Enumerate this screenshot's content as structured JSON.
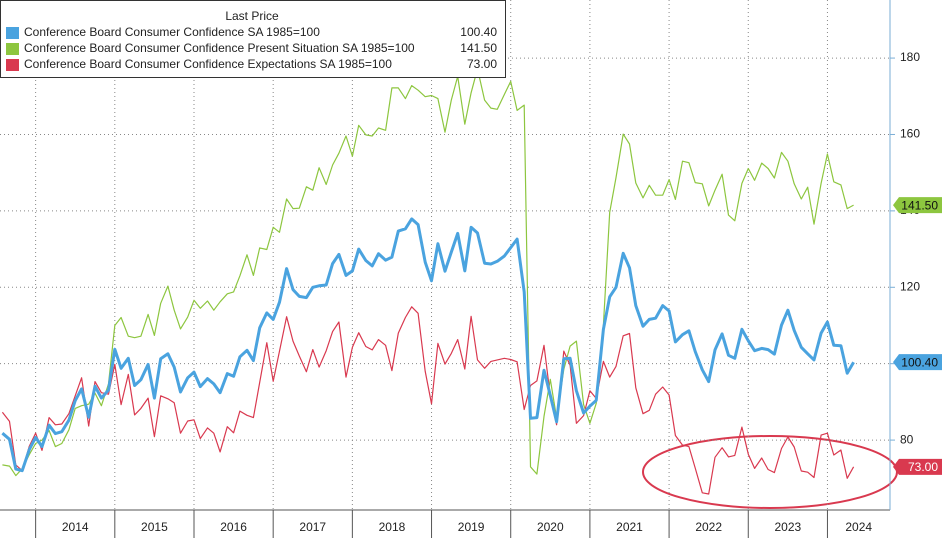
{
  "chart_data": {
    "type": "line",
    "legend_title": "Last Price",
    "x": [
      2013.58,
      2013.67,
      2013.75,
      2013.83,
      2013.92,
      2014.0,
      2014.08,
      2014.17,
      2014.25,
      2014.33,
      2014.42,
      2014.5,
      2014.58,
      2014.67,
      2014.75,
      2014.83,
      2014.92,
      2015.0,
      2015.08,
      2015.17,
      2015.25,
      2015.33,
      2015.42,
      2015.5,
      2015.58,
      2015.67,
      2015.75,
      2015.83,
      2015.92,
      2016.0,
      2016.08,
      2016.17,
      2016.25,
      2016.33,
      2016.42,
      2016.5,
      2016.58,
      2016.67,
      2016.75,
      2016.83,
      2016.92,
      2017.0,
      2017.08,
      2017.17,
      2017.25,
      2017.33,
      2017.42,
      2017.5,
      2017.58,
      2017.67,
      2017.75,
      2017.83,
      2017.92,
      2018.0,
      2018.08,
      2018.17,
      2018.25,
      2018.33,
      2018.42,
      2018.5,
      2018.58,
      2018.67,
      2018.75,
      2018.83,
      2018.92,
      2019.0,
      2019.08,
      2019.17,
      2019.25,
      2019.33,
      2019.42,
      2019.5,
      2019.58,
      2019.67,
      2019.75,
      2019.83,
      2019.92,
      2020.0,
      2020.08,
      2020.17,
      2020.25,
      2020.33,
      2020.42,
      2020.5,
      2020.58,
      2020.67,
      2020.75,
      2020.83,
      2020.92,
      2021.0,
      2021.08,
      2021.17,
      2021.25,
      2021.33,
      2021.42,
      2021.5,
      2021.58,
      2021.67,
      2021.75,
      2021.83,
      2021.92,
      2022.0,
      2022.08,
      2022.17,
      2022.25,
      2022.33,
      2022.42,
      2022.5,
      2022.58,
      2022.67,
      2022.75,
      2022.83,
      2022.92,
      2023.0,
      2023.08,
      2023.17,
      2023.25,
      2023.33,
      2023.42,
      2023.5,
      2023.58,
      2023.67,
      2023.75,
      2023.83,
      2023.92,
      2024.0,
      2024.08,
      2024.17,
      2024.25,
      2024.33
    ],
    "xlim": [
      2013.55,
      2024.79
    ],
    "xticks": [
      2014,
      2015,
      2016,
      2017,
      2018,
      2019,
      2020,
      2021,
      2022,
      2023,
      2024
    ],
    "ylim": [
      61.7,
      195.2
    ],
    "yticks": [
      80,
      100,
      120,
      140,
      160,
      180
    ],
    "grid": true,
    "series": [
      {
        "name": "Conference Board Consumer Confidence SA 1985=100",
        "color": "#4aa3df",
        "last_label": "100.40",
        "values": [
          81.8,
          80.2,
          72.4,
          72.0,
          77.5,
          80.7,
          78.3,
          83.9,
          81.7,
          82.2,
          85.2,
          90.3,
          93.4,
          86.0,
          94.1,
          91.0,
          93.1,
          103.8,
          98.8,
          101.4,
          94.3,
          95.8,
          99.8,
          91.0,
          101.3,
          102.6,
          99.1,
          92.6,
          96.3,
          97.8,
          94.0,
          96.1,
          94.7,
          92.4,
          97.4,
          96.7,
          101.8,
          103.5,
          100.8,
          109.4,
          113.3,
          111.6,
          116.1,
          124.9,
          119.4,
          117.6,
          117.3,
          120.0,
          120.4,
          120.6,
          126.2,
          128.6,
          123.1,
          124.3,
          130.0,
          127.0,
          125.6,
          128.8,
          127.1,
          127.9,
          134.7,
          135.3,
          137.9,
          136.4,
          126.6,
          121.7,
          131.4,
          124.2,
          129.2,
          134.1,
          124.3,
          135.7,
          134.2,
          126.3,
          126.1,
          126.8,
          128.2,
          130.4,
          132.6,
          118.8,
          85.7,
          85.9,
          98.3,
          91.7,
          84.8,
          101.3,
          101.4,
          92.9,
          87.1,
          88.9,
          90.4,
          109.0,
          117.5,
          120.0,
          128.9,
          125.1,
          115.2,
          109.8,
          111.6,
          111.9,
          115.2,
          113.8,
          105.7,
          107.6,
          108.6,
          103.2,
          98.4,
          95.3,
          103.6,
          107.8,
          102.2,
          101.4,
          109.0,
          106.0,
          103.4,
          104.0,
          103.7,
          102.5,
          110.1,
          114.0,
          108.7,
          104.3,
          102.6,
          101.0,
          108.0,
          110.9,
          104.8,
          104.7,
          97.5,
          100.4
        ]
      },
      {
        "name": "Conference Board Consumer Confidence Present Situation SA 1985=100",
        "color": "#8dc63f",
        "last_label": "141.50",
        "values": [
          73.5,
          73.2,
          70.7,
          72.5,
          76.2,
          79.1,
          80.0,
          82.5,
          78.3,
          79.1,
          82.7,
          88.3,
          89.0,
          89.4,
          92.3,
          89.0,
          94.7,
          110.0,
          112.1,
          107.2,
          106.8,
          107.2,
          112.9,
          107.4,
          115.8,
          120.3,
          114.0,
          109.1,
          112.2,
          116.6,
          114.5,
          116.4,
          114.0,
          116.2,
          118.3,
          118.8,
          123.0,
          128.5,
          123.1,
          130.3,
          129.9,
          135.7,
          134.4,
          143.1,
          140.6,
          140.7,
          146.3,
          145.4,
          151.3,
          146.9,
          152.0,
          155.1,
          159.6,
          154.3,
          162.4,
          159.9,
          159.6,
          161.7,
          161.1,
          172.2,
          172.2,
          169.4,
          172.8,
          171.6,
          169.9,
          170.2,
          169.4,
          160.6,
          169.0,
          175.2,
          162.7,
          170.9,
          177.2,
          169.0,
          166.9,
          166.6,
          170.5,
          173.9,
          166.3,
          167.7,
          73.0,
          71.1,
          86.2,
          95.9,
          85.8,
          98.5,
          104.6,
          105.9,
          89.3,
          84.4,
          89.6,
          110.1,
          139.6,
          148.7,
          160.1,
          157.5,
          147.3,
          143.4,
          146.7,
          144.1,
          144.1,
          148.2,
          143.0,
          153.0,
          152.6,
          147.4,
          147.1,
          141.3,
          145.4,
          149.6,
          138.9,
          137.4,
          147.2,
          151.1,
          148.0,
          152.5,
          151.1,
          148.6,
          155.3,
          153.0,
          147.1,
          143.1,
          146.2,
          136.5,
          147.2,
          154.9,
          147.6,
          146.8,
          140.6,
          141.5
        ]
      },
      {
        "name": "Conference Board Consumer Confidence Expectations SA 1985=100",
        "color": "#d9394f",
        "last_label": "73.00",
        "values": [
          87.3,
          84.9,
          73.5,
          72.0,
          78.4,
          81.8,
          77.3,
          85.9,
          84.0,
          84.2,
          86.9,
          91.6,
          96.3,
          83.7,
          95.3,
          92.4,
          92.0,
          99.8,
          89.3,
          97.2,
          86.6,
          88.3,
          91.0,
          80.9,
          91.6,
          90.8,
          89.8,
          81.8,
          85.0,
          85.3,
          80.4,
          83.2,
          81.8,
          76.9,
          83.5,
          81.9,
          87.6,
          86.5,
          85.9,
          95.1,
          105.5,
          95.4,
          103.3,
          112.3,
          105.9,
          102.0,
          97.9,
          103.7,
          99.1,
          103.4,
          108.4,
          110.9,
          96.5,
          104.3,
          108.1,
          104.5,
          103.6,
          106.3,
          104.8,
          98.2,
          108.0,
          112.1,
          114.9,
          113.2,
          98.0,
          89.5,
          105.3,
          99.9,
          102.7,
          106.3,
          98.6,
          112.4,
          101.0,
          98.8,
          100.6,
          101.0,
          101.4,
          101.1,
          100.5,
          88.0,
          94.3,
          95.5,
          104.8,
          91.5,
          84.0,
          103.3,
          99.6,
          84.4,
          86.4,
          92.9,
          90.9,
          100.6,
          96.5,
          99.3,
          107.3,
          107.9,
          93.7,
          86.9,
          87.8,
          92.0,
          93.9,
          91.8,
          81.2,
          78.7,
          78.3,
          72.7,
          66.2,
          65.9,
          75.5,
          78.0,
          75.6,
          76.0,
          83.4,
          76.3,
          72.6,
          75.3,
          72.3,
          71.5,
          77.8,
          80.8,
          78.2,
          71.9,
          71.6,
          70.2,
          81.3,
          81.8,
          76.1,
          77.4,
          70.0,
          73.0
        ]
      }
    ]
  }
}
